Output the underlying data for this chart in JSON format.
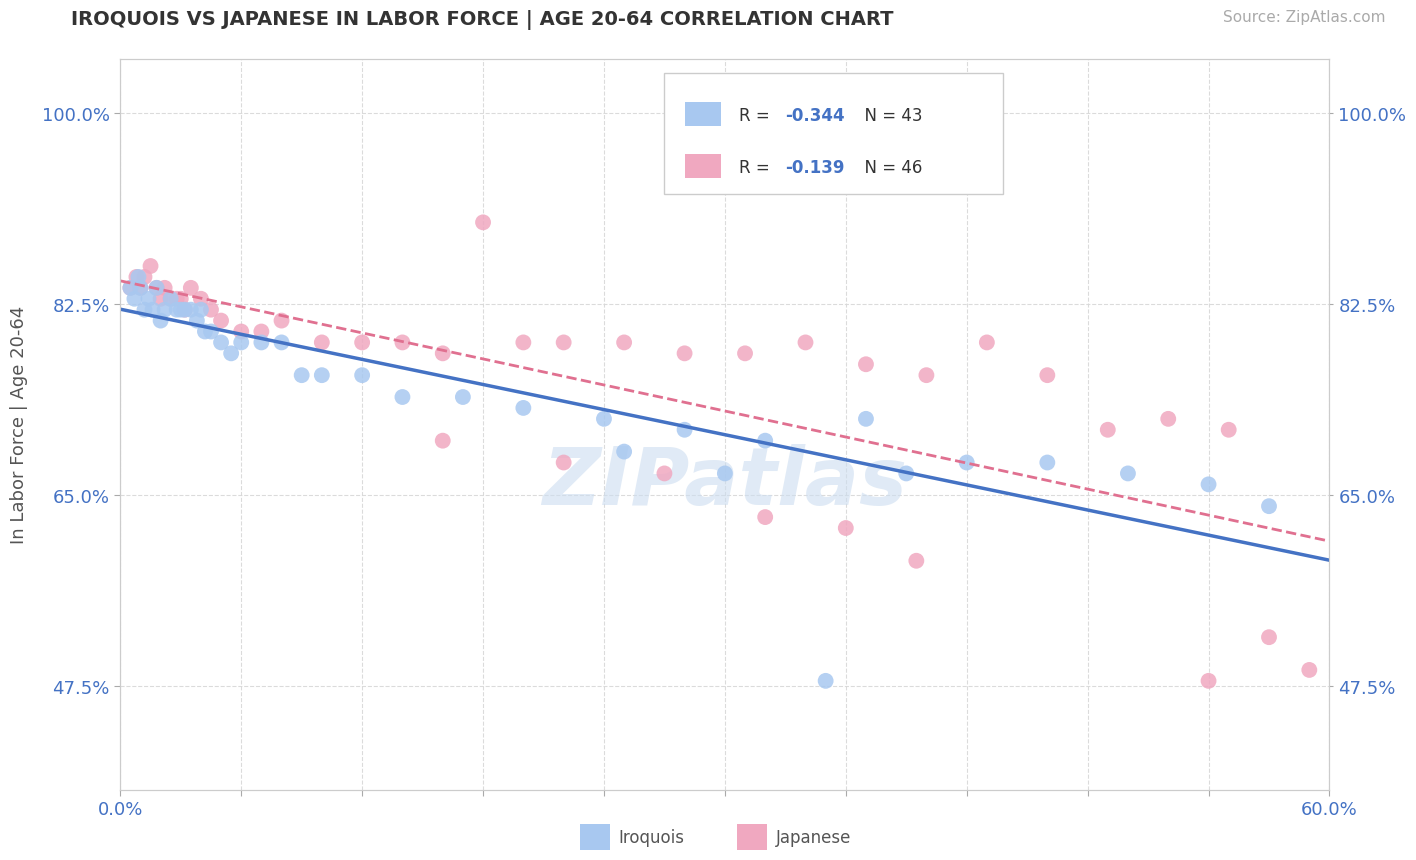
{
  "title": "IROQUOIS VS JAPANESE IN LABOR FORCE | AGE 20-64 CORRELATION CHART",
  "source_text": "Source: ZipAtlas.com",
  "ylabel": "In Labor Force | Age 20-64",
  "xlim": [
    0.0,
    0.6
  ],
  "ylim": [
    0.38,
    1.05
  ],
  "xticks": [
    0.0,
    0.06,
    0.12,
    0.18,
    0.24,
    0.3,
    0.36,
    0.42,
    0.48,
    0.54,
    0.6
  ],
  "xticklabels": [
    "0.0%",
    "",
    "",
    "",
    "",
    "",
    "",
    "",
    "",
    "",
    "60.0%"
  ],
  "yticks": [
    0.475,
    0.65,
    0.825,
    1.0
  ],
  "yticklabels": [
    "47.5%",
    "65.0%",
    "82.5%",
    "100.0%"
  ],
  "legend_r_iroquois": "-0.344",
  "legend_n_iroquois": "43",
  "legend_r_japanese": "-0.139",
  "legend_n_japanese": "46",
  "iroquois_color": "#a8c8f0",
  "japanese_color": "#f0a8c0",
  "iroquois_line_color": "#4472c4",
  "japanese_line_color": "#e07090",
  "background_color": "#ffffff",
  "watermark_text": "ZIPatlas",
  "watermark_color": "#ccddf0",
  "grid_color": "#d8d8d8",
  "iroquois_x": [
    0.005,
    0.007,
    0.009,
    0.01,
    0.012,
    0.014,
    0.016,
    0.018,
    0.02,
    0.022,
    0.025,
    0.028,
    0.03,
    0.032,
    0.035,
    0.038,
    0.04,
    0.042,
    0.045,
    0.05,
    0.055,
    0.06,
    0.07,
    0.08,
    0.09,
    0.1,
    0.12,
    0.14,
    0.17,
    0.2,
    0.24,
    0.28,
    0.32,
    0.37,
    0.42,
    0.46,
    0.5,
    0.54,
    0.57,
    0.25,
    0.3,
    0.35,
    0.39
  ],
  "iroquois_y": [
    0.84,
    0.83,
    0.85,
    0.84,
    0.82,
    0.83,
    0.82,
    0.84,
    0.81,
    0.82,
    0.83,
    0.82,
    0.82,
    0.82,
    0.82,
    0.81,
    0.82,
    0.8,
    0.8,
    0.79,
    0.78,
    0.79,
    0.79,
    0.79,
    0.76,
    0.76,
    0.76,
    0.74,
    0.74,
    0.73,
    0.72,
    0.71,
    0.7,
    0.72,
    0.68,
    0.68,
    0.67,
    0.66,
    0.64,
    0.69,
    0.67,
    0.48,
    0.67
  ],
  "japanese_x": [
    0.005,
    0.008,
    0.01,
    0.012,
    0.015,
    0.018,
    0.02,
    0.022,
    0.025,
    0.028,
    0.03,
    0.032,
    0.035,
    0.04,
    0.045,
    0.05,
    0.06,
    0.07,
    0.08,
    0.1,
    0.12,
    0.14,
    0.16,
    0.18,
    0.2,
    0.22,
    0.25,
    0.28,
    0.31,
    0.34,
    0.37,
    0.4,
    0.43,
    0.46,
    0.49,
    0.52,
    0.55,
    0.57,
    0.59,
    0.16,
    0.22,
    0.27,
    0.32,
    0.36,
    0.395,
    0.54
  ],
  "japanese_y": [
    0.84,
    0.85,
    0.84,
    0.85,
    0.86,
    0.84,
    0.83,
    0.84,
    0.83,
    0.83,
    0.83,
    0.82,
    0.84,
    0.83,
    0.82,
    0.81,
    0.8,
    0.8,
    0.81,
    0.79,
    0.79,
    0.79,
    0.78,
    0.9,
    0.79,
    0.79,
    0.79,
    0.78,
    0.78,
    0.79,
    0.77,
    0.76,
    0.79,
    0.76,
    0.71,
    0.72,
    0.71,
    0.52,
    0.49,
    0.7,
    0.68,
    0.67,
    0.63,
    0.62,
    0.59,
    0.48
  ]
}
